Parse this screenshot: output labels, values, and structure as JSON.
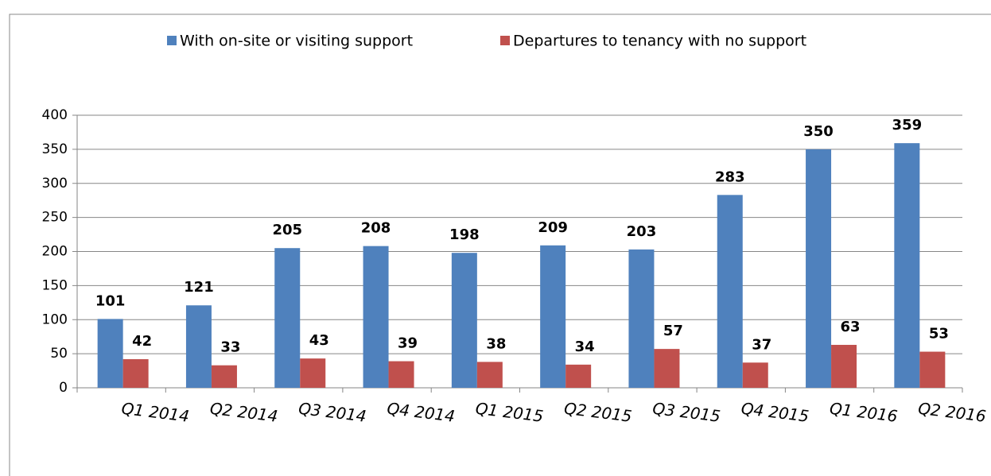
{
  "chart_data": {
    "type": "bar",
    "categories": [
      "Q1 2014",
      "Q2 2014",
      "Q3 2014",
      "Q4 2014",
      "Q1 2015",
      "Q2 2015",
      "Q3 2015",
      "Q4 2015",
      "Q1 2016",
      "Q2 2016"
    ],
    "series": [
      {
        "name": "With on-site or visiting support",
        "color": "#4f81bd",
        "values": [
          101,
          121,
          205,
          208,
          198,
          209,
          203,
          283,
          350,
          359
        ]
      },
      {
        "name": "Departures to tenancy with no support",
        "color": "#c0504d",
        "values": [
          42,
          33,
          43,
          39,
          38,
          34,
          57,
          37,
          63,
          53
        ]
      }
    ],
    "ylim": [
      0,
      400
    ],
    "yticks": [
      0,
      50,
      100,
      150,
      200,
      250,
      300,
      350,
      400
    ],
    "grid": true,
    "legend": "top"
  }
}
